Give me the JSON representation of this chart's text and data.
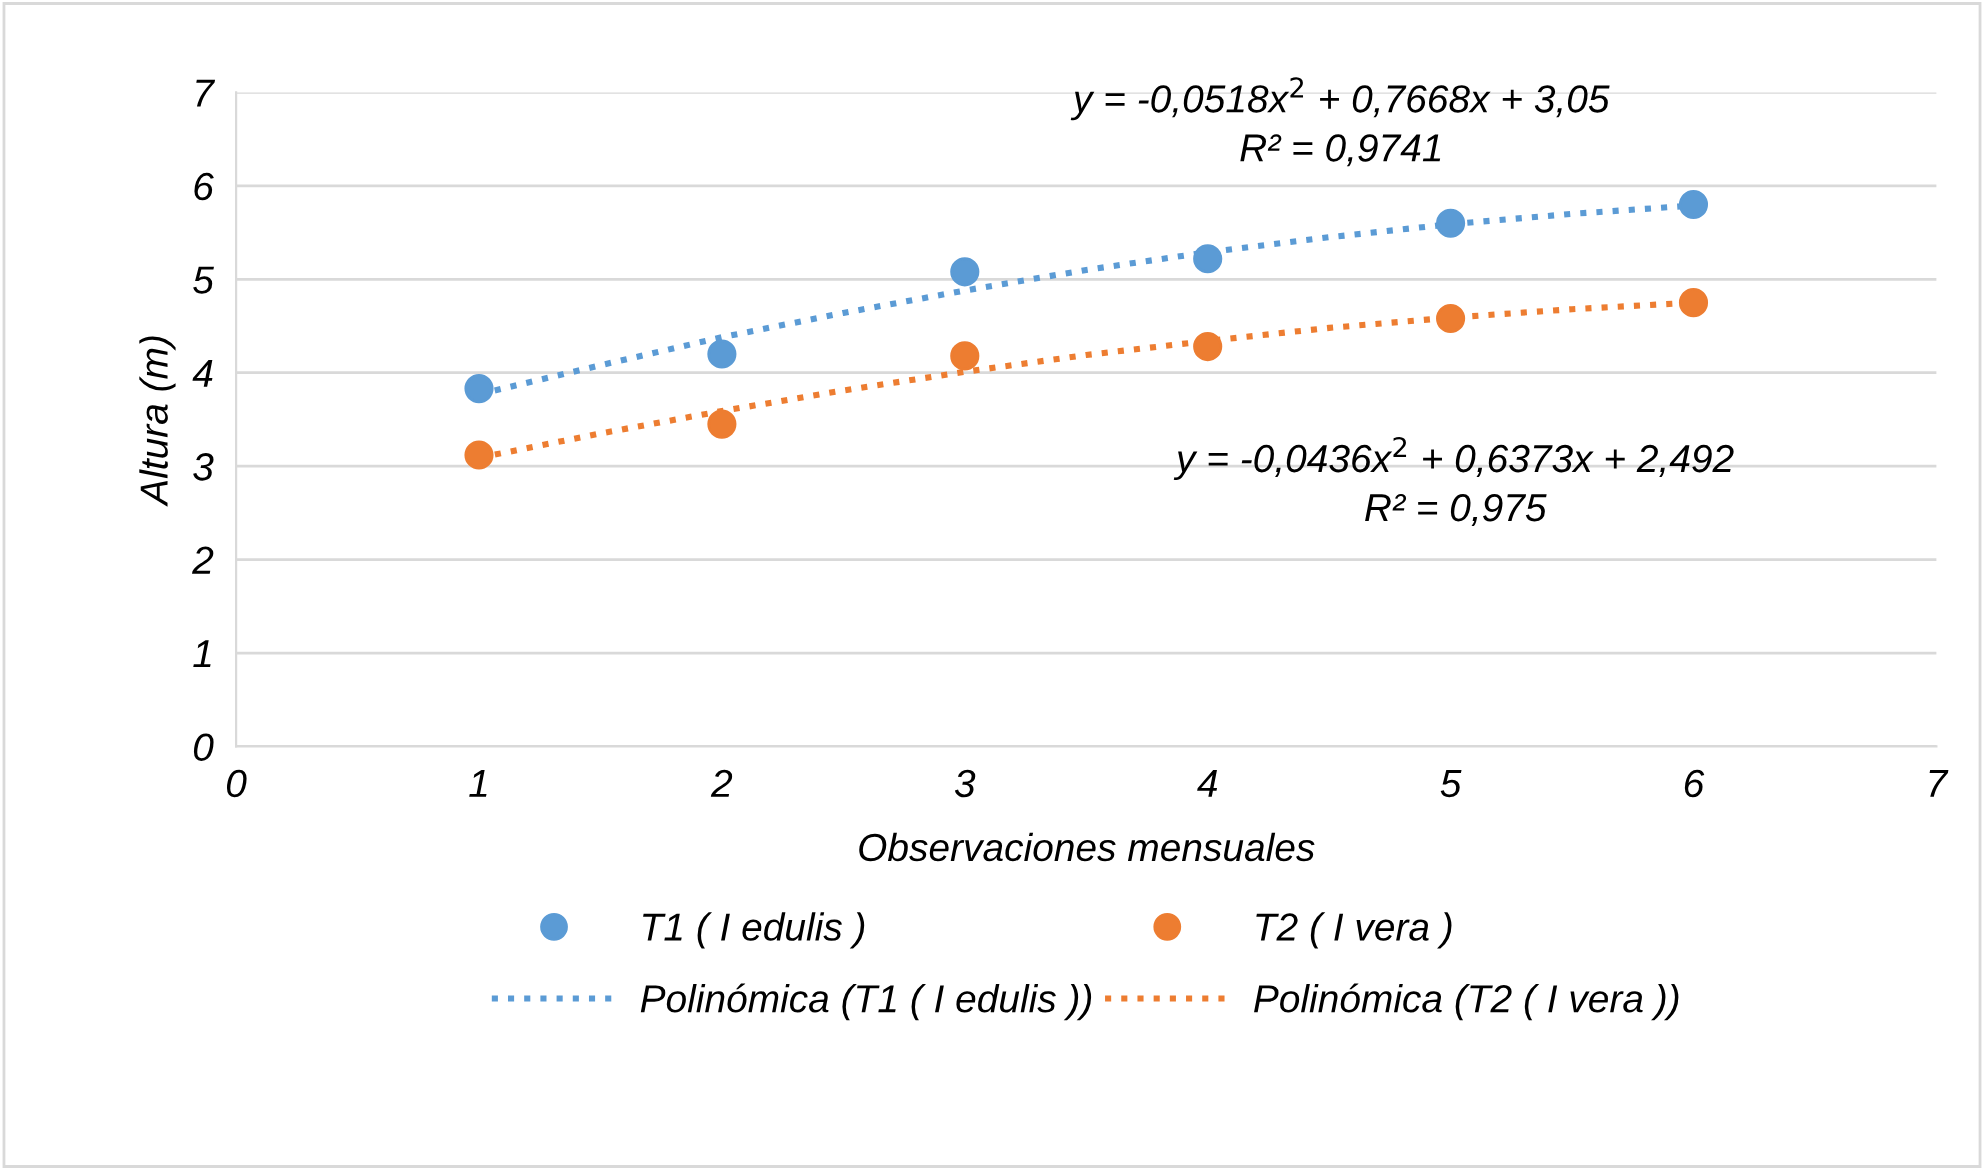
{
  "chart_data": {
    "type": "scatter",
    "xlabel": "Observaciones mensuales",
    "ylabel": "Altura (m)",
    "xlim": [
      0,
      7
    ],
    "xticks": [
      0,
      1,
      2,
      3,
      4,
      5,
      6,
      7
    ],
    "ylim": [
      0,
      7
    ],
    "yticks": [
      0,
      1,
      2,
      3,
      4,
      5,
      6,
      7
    ],
    "grid": "y",
    "legend": "bottom",
    "series": [
      {
        "name": "T1 ( I edulis )",
        "marker": "circle",
        "color": "#5b9bd5",
        "x": [
          1,
          2,
          3,
          4,
          5,
          6
        ],
        "values": [
          3.83,
          4.2,
          5.08,
          5.22,
          5.6,
          5.8
        ]
      },
      {
        "name": "T2 ( I vera )",
        "marker": "circle",
        "color": "#ed7d31",
        "x": [
          1,
          2,
          3,
          4,
          5,
          6
        ],
        "values": [
          3.12,
          3.45,
          4.18,
          4.28,
          4.58,
          4.75
        ]
      },
      {
        "name": "Polinómica (T1 ( I edulis ))",
        "type": "line",
        "marker": "none",
        "line_style": "dotted",
        "color": "#5b9bd5",
        "x": [
          1,
          1.5,
          2,
          2.5,
          3,
          3.5,
          4,
          4.5,
          5,
          5.5,
          6
        ],
        "values": [
          3.77,
          4.08,
          4.38,
          4.64,
          4.88,
          5.1,
          5.29,
          5.45,
          5.59,
          5.7,
          5.79
        ]
      },
      {
        "name": "Polinómica (T2 ( I vera ))",
        "type": "line",
        "marker": "none",
        "line_style": "dotted",
        "color": "#ed7d31",
        "x": [
          1,
          1.5,
          2,
          2.5,
          3,
          3.5,
          4,
          4.5,
          5,
          5.5,
          6
        ],
        "values": [
          3.09,
          3.35,
          3.59,
          3.81,
          4.01,
          4.19,
          4.34,
          4.48,
          4.59,
          4.68,
          4.75
        ]
      }
    ],
    "annotations": [
      "y = -0,0518x$^{2}$ + 0,7668x + 3,05",
      "R² = 0,9741",
      "y = -0,0436x$^{2}$ + 0,6373x + 2,492",
      "R² = 0,975"
    ]
  }
}
